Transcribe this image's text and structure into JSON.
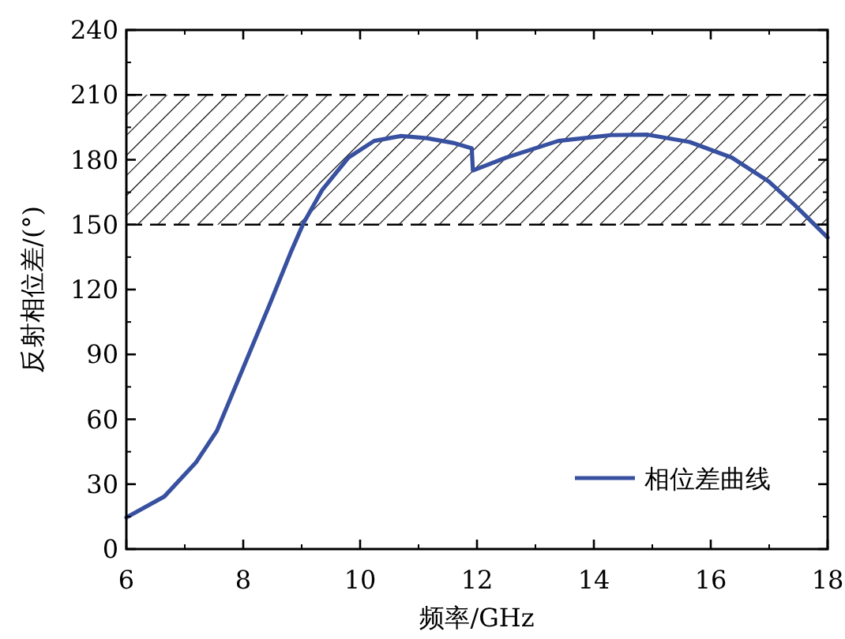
{
  "chart_data": {
    "type": "line",
    "xlabel": "频率/GHz",
    "ylabel": "反射相位差/(°)",
    "x": [
      6,
      6.65,
      7.19,
      7.55,
      8.0,
      8.45,
      8.81,
      9.03,
      9.35,
      9.8,
      10.24,
      10.7,
      11.14,
      11.59,
      11.91,
      11.93,
      12.5,
      13.39,
      14.29,
      14.92,
      15.64,
      16.36,
      16.99,
      17.44,
      17.71,
      18
    ],
    "series": [
      {
        "name": "相位差曲线",
        "color": "#3850a0",
        "values": [
          14.6,
          24.3,
          40,
          54.7,
          83.8,
          113,
          137,
          150.6,
          166,
          181,
          188.7,
          191,
          190,
          187.8,
          185.3,
          175,
          181,
          188.7,
          191.4,
          191.6,
          188.2,
          181,
          170,
          159,
          151.8,
          144
        ]
      }
    ],
    "xlim": [
      6,
      18
    ],
    "xticks": [
      6,
      8,
      10,
      12,
      14,
      16,
      18
    ],
    "ylim": [
      0,
      240
    ],
    "yticks": [
      0,
      30,
      60,
      90,
      120,
      150,
      180,
      210,
      240
    ],
    "bands": [
      {
        "axis": "y",
        "from": 150,
        "to": 210,
        "color": "#000000"
      }
    ],
    "legend": "bottom right",
    "marker": "none",
    "line_style": "solid"
  }
}
